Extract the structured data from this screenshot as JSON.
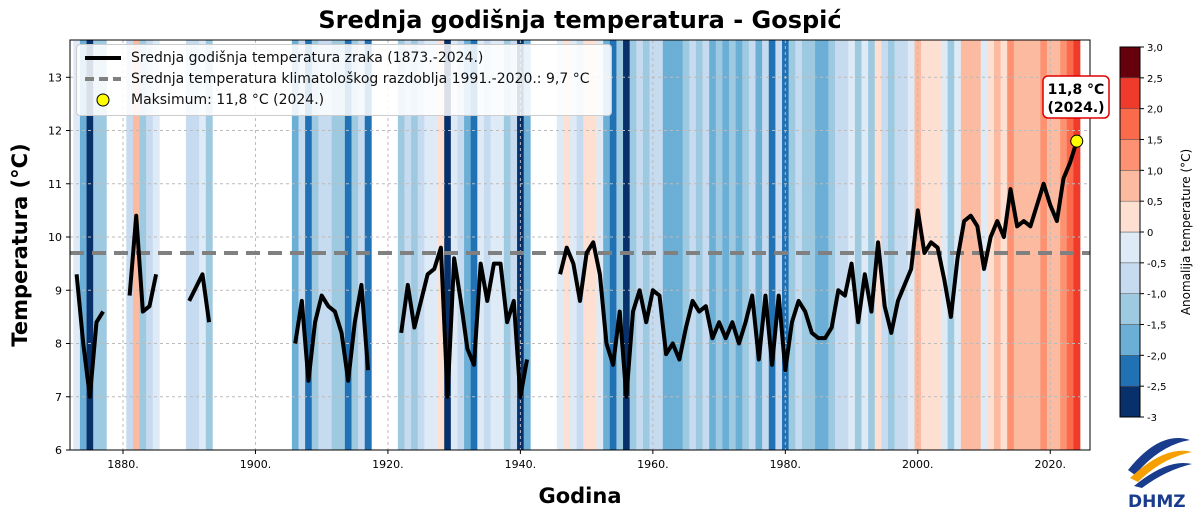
{
  "chart_data": {
    "type": "line",
    "title": "Srednja godišnja temperatura - Gospić",
    "xlabel": "Godina",
    "ylabel": "Temperatura (°C)",
    "xlim": [
      1872,
      2026
    ],
    "ylim": [
      6,
      13.7
    ],
    "yticks": [
      6,
      7,
      8,
      9,
      10,
      11,
      12,
      13
    ],
    "xticks": [
      1880,
      1900,
      1920,
      1940,
      1960,
      1980,
      2000,
      2020
    ],
    "xtick_labels": [
      "1880.",
      "1900.",
      "1920.",
      "1940.",
      "1960.",
      "1980.",
      "2000.",
      "2020."
    ],
    "grid": true,
    "legend_placement": "top-left",
    "legend": [
      "Srednja godišnja temperatura zraka (1873.-2024.)",
      "Srednja temperatura klimatološkog razdoblja 1991.-2020.: 9,7 °C",
      "Maksimum: 11,8 °C (2024.)"
    ],
    "reference_mean": 9.7,
    "max": {
      "year": 2024,
      "value": 11.8,
      "label_value": "11,8 °C",
      "label_year": "(2024.)"
    },
    "start_year": 1873,
    "values": [
      9.3,
      8.0,
      7.0,
      8.4,
      8.6,
      null,
      null,
      null,
      8.9,
      10.4,
      8.6,
      8.7,
      9.3,
      null,
      null,
      null,
      null,
      8.8,
      9.05,
      9.3,
      8.4,
      null,
      null,
      null,
      null,
      null,
      null,
      null,
      null,
      null,
      null,
      null,
      null,
      8.0,
      8.8,
      7.3,
      8.4,
      8.9,
      8.7,
      8.6,
      8.2,
      7.3,
      8.4,
      9.1,
      7.5,
      null,
      null,
      null,
      null,
      8.2,
      9.1,
      8.3,
      8.8,
      9.3,
      9.4,
      9.8,
      7.0,
      9.6,
      8.8,
      7.9,
      7.6,
      9.5,
      8.8,
      9.5,
      9.5,
      8.4,
      8.8,
      7.0,
      7.7,
      null,
      null,
      null,
      null,
      9.3,
      9.8,
      9.5,
      8.8,
      9.7,
      9.9,
      9.3,
      8.0,
      7.6,
      8.6,
      7.0,
      8.6,
      9.0,
      8.4,
      9.0,
      8.9,
      7.8,
      8.0,
      7.7,
      8.3,
      8.8,
      8.6,
      8.7,
      8.1,
      8.4,
      8.1,
      8.4,
      8.0,
      8.4,
      8.9,
      7.7,
      8.9,
      7.6,
      8.9,
      7.5,
      8.4,
      8.8,
      8.6,
      8.2,
      8.1,
      8.1,
      8.3,
      9.0,
      8.9,
      9.5,
      8.4,
      9.3,
      8.6,
      9.9,
      8.7,
      8.2,
      8.8,
      9.1,
      9.4,
      10.5,
      9.7,
      9.9,
      9.8,
      9.2,
      8.5,
      9.6,
      10.3,
      10.4,
      10.2,
      9.4,
      10.0,
      10.3,
      10.0,
      10.9,
      10.2,
      10.3,
      10.2,
      10.6,
      11.0,
      10.6,
      10.3,
      11.1,
      11.4,
      11.8
    ],
    "colorbar": {
      "label": "Anomalija temperature (°C)",
      "bounds": [
        -3,
        -2.5,
        -2,
        -1.5,
        -1,
        -0.5,
        0,
        0.5,
        1,
        1.5,
        2,
        2.5,
        3
      ],
      "tick_labels": [
        "-3",
        "-2,5",
        "-2,0",
        "-1,5",
        "-1,0",
        "-0,5",
        "0",
        "0,5",
        "1,0",
        "1,5",
        "2,0",
        "2,5",
        "3,0"
      ],
      "colors": [
        "#08306b",
        "#2171b5",
        "#6baed6",
        "#9ecae1",
        "#c6dbef",
        "#deebf7",
        "#fee0d2",
        "#fcbba1",
        "#fc9272",
        "#fb6a4a",
        "#ef3b2c",
        "#67000d"
      ]
    }
  },
  "logo": {
    "text": "DHMZ"
  },
  "colors": {
    "line": "#000000",
    "mean_line": "#808080",
    "marker": "#ffff00",
    "annotation_border": "#e00000"
  }
}
